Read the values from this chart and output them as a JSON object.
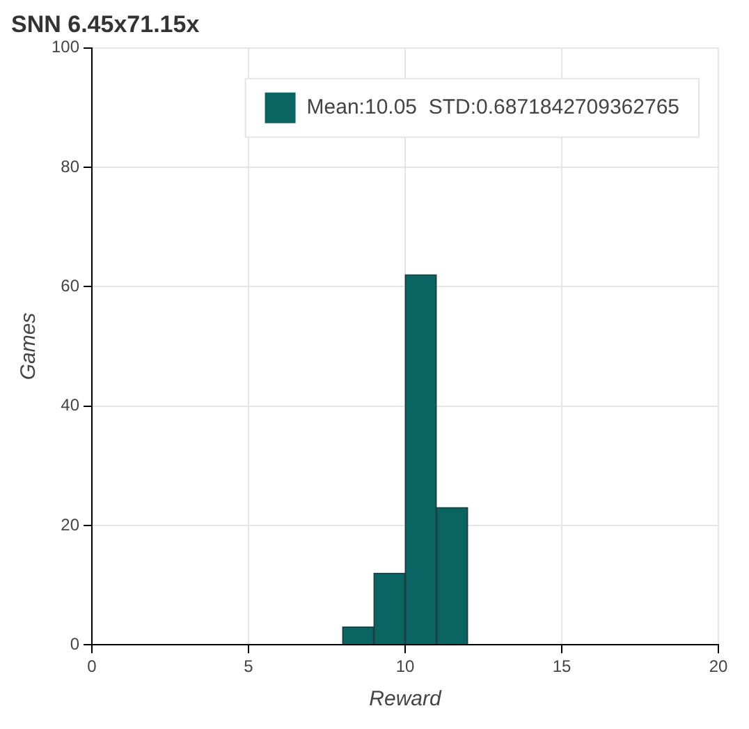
{
  "chart_data": {
    "type": "histogram",
    "title": "SNN 6.45x71.15x",
    "xlabel": "Reward",
    "ylabel": "Games",
    "bins": [
      8,
      9,
      10,
      11,
      12
    ],
    "series": [
      {
        "name": "Mean:10.05  STD:0.6871842709362765",
        "color": "#0a6461",
        "values": [
          3,
          12,
          62,
          23
        ]
      }
    ],
    "xlim": [
      0,
      20
    ],
    "xticks": [
      0,
      5,
      10,
      15,
      20
    ],
    "ylim": [
      0,
      100
    ],
    "yticks": [
      0,
      20,
      40,
      60,
      80,
      100
    ],
    "grid": true,
    "legend": "top right"
  }
}
